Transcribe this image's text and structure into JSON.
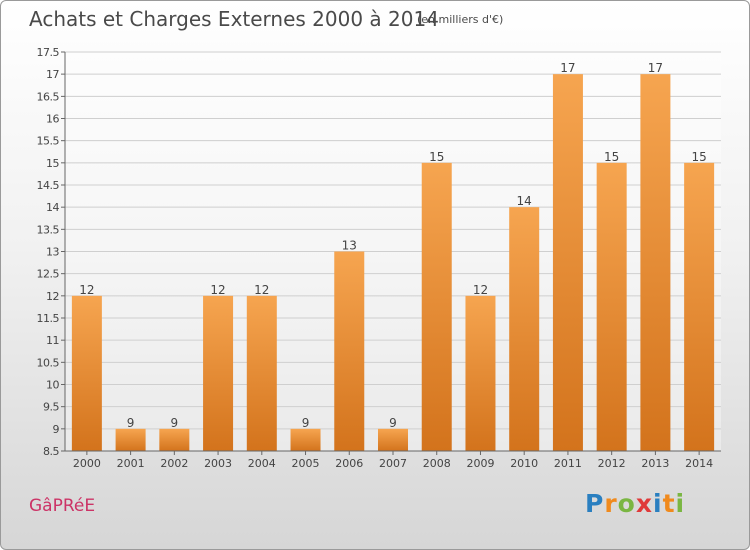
{
  "header": {
    "title": "Achats et Charges Externes 2000 à 2014",
    "unit": "(en milliers d'€)"
  },
  "footer": {
    "commune": "GâPRéE",
    "logo": {
      "letters": [
        "P",
        "r",
        "o",
        "x",
        "i",
        "t",
        "i"
      ],
      "colors": [
        "#2a7fc0",
        "#f08a1d",
        "#7ab642",
        "#e03a3a",
        "#2a7fc0",
        "#f08a1d",
        "#7ab642"
      ]
    }
  },
  "chart_data": {
    "type": "bar",
    "categories": [
      "2000",
      "2001",
      "2002",
      "2003",
      "2004",
      "2005",
      "2006",
      "2007",
      "2008",
      "2009",
      "2010",
      "2011",
      "2012",
      "2013",
      "2014"
    ],
    "values": [
      12,
      9,
      9,
      12,
      12,
      9,
      13,
      9,
      15,
      12,
      14,
      17,
      15,
      17,
      15
    ],
    "ylim": [
      8.5,
      17.5
    ],
    "yticks": [
      "8.5",
      "9",
      "9.5",
      "10",
      "10.5",
      "11",
      "11.5",
      "12",
      "12.5",
      "13",
      "13.5",
      "14",
      "14.5",
      "15",
      "15.5",
      "16",
      "16.5",
      "17",
      "17.5"
    ],
    "grid": true,
    "colors": {
      "bar_light": "#f6a550",
      "bar_dark": "#d3731c"
    }
  }
}
